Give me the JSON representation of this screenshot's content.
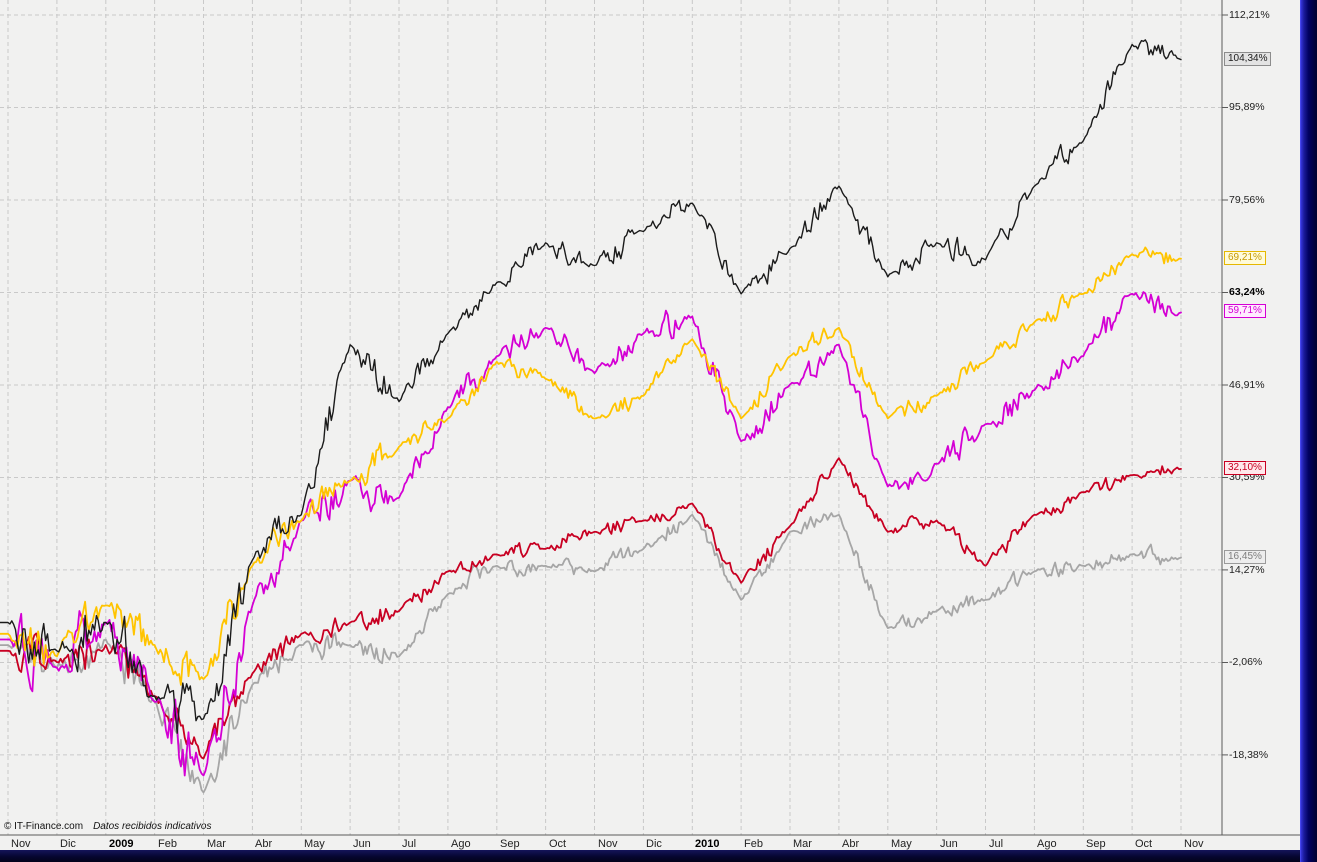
{
  "window": {
    "footer_copyright": "© IT-Finance.com",
    "footer_note": "Datos recibidos indicativos"
  },
  "colors": {
    "background": "#f1f1f0",
    "grid": "#c9c9c9",
    "axis": "#5a5a5a",
    "timeline_bar": "#0a0a3e",
    "scrollbar_blue": "#2e2ed8"
  },
  "chart_data": {
    "type": "line",
    "title": "",
    "grid": true,
    "ylim": [
      -27,
      113
    ],
    "x_axis": {
      "months": [
        {
          "label": "Nov",
          "bold": false
        },
        {
          "label": "Dic",
          "bold": false
        },
        {
          "label": "2009",
          "bold": true
        },
        {
          "label": "Feb",
          "bold": false
        },
        {
          "label": "Mar",
          "bold": false
        },
        {
          "label": "Abr",
          "bold": false
        },
        {
          "label": "May",
          "bold": false
        },
        {
          "label": "Jun",
          "bold": false
        },
        {
          "label": "Jul",
          "bold": false
        },
        {
          "label": "Ago",
          "bold": false
        },
        {
          "label": "Sep",
          "bold": false
        },
        {
          "label": "Oct",
          "bold": false
        },
        {
          "label": "Nov",
          "bold": false
        },
        {
          "label": "Dic",
          "bold": false
        },
        {
          "label": "2010",
          "bold": true
        },
        {
          "label": "Feb",
          "bold": false
        },
        {
          "label": "Mar",
          "bold": false
        },
        {
          "label": "Abr",
          "bold": false
        },
        {
          "label": "May",
          "bold": false
        },
        {
          "label": "Jun",
          "bold": false
        },
        {
          "label": "Jul",
          "bold": false
        },
        {
          "label": "Ago",
          "bold": false
        },
        {
          "label": "Sep",
          "bold": false
        },
        {
          "label": "Oct",
          "bold": false
        },
        {
          "label": "Nov",
          "bold": false
        }
      ]
    },
    "y_axis": {
      "unit": "%",
      "bold_tick": "63,24%",
      "ticks": [
        {
          "value": 112.21,
          "label": "112,21%"
        },
        {
          "value": 95.89,
          "label": "95,89%"
        },
        {
          "value": 79.56,
          "label": "79,56%"
        },
        {
          "value": 63.24,
          "label": "63,24%"
        },
        {
          "value": 46.91,
          "label": "46,91%"
        },
        {
          "value": 30.59,
          "label": "30,59%"
        },
        {
          "value": 14.27,
          "label": "14,27%"
        },
        {
          "value": -2.06,
          "label": "-2,06%"
        },
        {
          "value": -18.38,
          "label": "-18,38%"
        }
      ]
    },
    "series": [
      {
        "name": "black",
        "color": "#1b1b1b",
        "end_label": "104,34%",
        "end_value": 104.34,
        "label_colors": {
          "border": "#8c8c8c",
          "bg": "#e3e3e3",
          "text": "#1b1b1b"
        },
        "monthly_values": [
          5,
          0,
          5,
          -8,
          -12,
          16,
          24,
          54,
          44,
          56,
          65,
          72,
          68,
          74,
          79,
          63,
          71,
          82,
          66,
          72,
          69,
          82,
          90,
          107,
          104.34
        ]
      },
      {
        "name": "yellow",
        "color": "#ffc400",
        "end_label": "69,21%",
        "end_value": 69.21,
        "label_colors": {
          "border": "#e6b800",
          "bg": "#fffbda",
          "text": "#c79a00"
        },
        "monthly_values": [
          3,
          -1,
          8,
          1,
          -5,
          15,
          23,
          30,
          36,
          41,
          51,
          48,
          41,
          45,
          55,
          41,
          52,
          57,
          41,
          45,
          51,
          58,
          63,
          70,
          69.21
        ]
      },
      {
        "name": "magenta",
        "color": "#d400d4",
        "end_label": "59,71%",
        "end_value": 59.71,
        "label_colors": {
          "border": "#d400d4",
          "bg": "#ffeaff",
          "text": "#d400d4"
        },
        "monthly_values": [
          2,
          -3,
          5,
          -9,
          -22,
          8,
          23,
          30,
          27,
          43,
          52,
          57,
          49,
          56,
          59,
          37,
          47,
          54,
          29,
          33,
          40,
          46,
          52,
          63,
          59.71
        ]
      },
      {
        "name": "red",
        "color": "#c80022",
        "end_label": "32,10%",
        "end_value": 32.1,
        "label_colors": {
          "border": "#c80022",
          "bg": "#ffe9ec",
          "text": "#c80022"
        },
        "monthly_values": [
          0,
          -2,
          1,
          -8,
          -19,
          -4,
          3,
          5,
          7,
          14,
          17,
          18,
          21,
          23,
          26,
          12,
          22,
          34,
          21,
          23,
          15,
          24,
          28,
          31,
          32.1
        ]
      },
      {
        "name": "gray",
        "color": "#a6a6a6",
        "end_label": "16,45%",
        "end_value": 16.45,
        "label_colors": {
          "border": "#9a9a9a",
          "bg": "#ededed",
          "text": "#7d7d7d"
        },
        "monthly_values": [
          1,
          -3,
          2,
          -9,
          -25,
          -6,
          1,
          1,
          -1,
          10,
          15,
          15,
          14,
          18,
          24,
          9,
          21,
          24,
          4,
          7,
          9,
          14,
          15,
          17,
          16.45
        ]
      }
    ]
  }
}
